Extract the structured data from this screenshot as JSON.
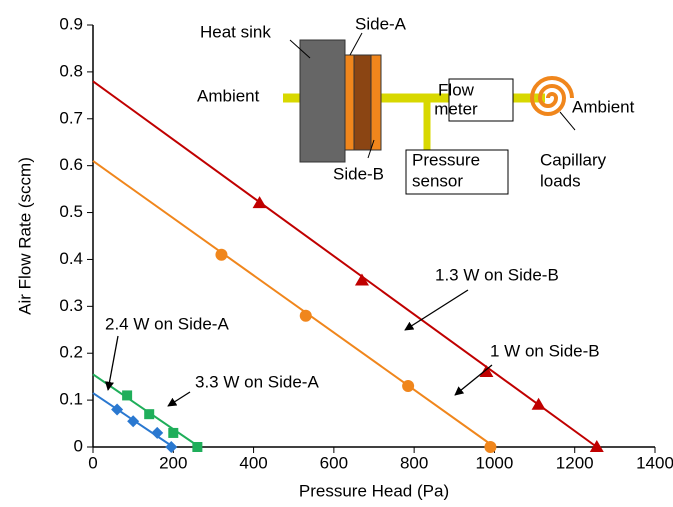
{
  "chart_data": {
    "type": "line",
    "xlabel": "Pressure Head (Pa)",
    "ylabel": "Air Flow Rate (sccm)",
    "xlim": [
      0,
      1400
    ],
    "ylim": [
      0,
      0.9
    ],
    "xticks": [
      0,
      200,
      400,
      600,
      800,
      1000,
      1200,
      1400
    ],
    "yticks": [
      0,
      0.1,
      0.2,
      0.3,
      0.4,
      0.5,
      0.6,
      0.7,
      0.8,
      0.9
    ],
    "series": [
      {
        "name": "1.3 W on Side-B",
        "color": "#c00000",
        "marker": "triangle",
        "x": [
          415,
          670,
          980,
          1110,
          1255
        ],
        "values": [
          0.52,
          0.355,
          0.16,
          0.09,
          0
        ],
        "fit": {
          "x": [
            0,
            1255
          ],
          "values": [
            0.78,
            0
          ]
        }
      },
      {
        "name": "1 W on Side-B",
        "color": "#f0861c",
        "marker": "circle",
        "x": [
          320,
          530,
          785,
          990
        ],
        "values": [
          0.41,
          0.28,
          0.13,
          0
        ],
        "fit": {
          "x": [
            0,
            1000
          ],
          "values": [
            0.61,
            0
          ]
        }
      },
      {
        "name": "2.4 W on Side-A",
        "color": "#1fae5a",
        "marker": "square",
        "x": [
          85,
          140,
          200,
          260
        ],
        "values": [
          0.11,
          0.07,
          0.03,
          0
        ],
        "fit": {
          "x": [
            0,
            265
          ],
          "values": [
            0.155,
            0
          ]
        }
      },
      {
        "name": "3.3 W on Side-A",
        "color": "#2a78d0",
        "marker": "diamond",
        "x": [
          60,
          100,
          160,
          195
        ],
        "values": [
          0.08,
          0.055,
          0.03,
          0
        ],
        "fit": {
          "x": [
            0,
            200
          ],
          "values": [
            0.115,
            0
          ]
        }
      }
    ],
    "inset": {
      "heat_sink": "Heat sink",
      "side_a": "Side-A",
      "side_b": "Side-B",
      "ambient_left": "Ambient",
      "ambient_right": "Ambient",
      "flow_meter": [
        "Flow",
        "meter"
      ],
      "pressure_sensor": [
        "Pressure",
        "sensor"
      ],
      "capillary_loads": [
        "Capillary",
        "loads"
      ]
    }
  }
}
